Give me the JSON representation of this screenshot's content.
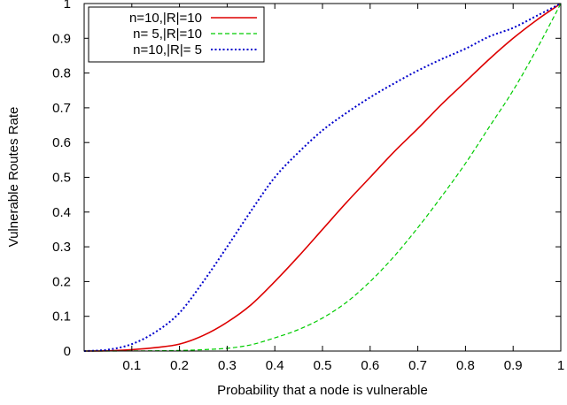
{
  "chart_data": {
    "type": "line",
    "title": "",
    "xlabel": "Probability that a node is vulnerable",
    "ylabel": "Vulnerable Routes Rate",
    "xlim": [
      0,
      1
    ],
    "ylim": [
      0,
      1
    ],
    "xticks": [
      0.1,
      0.2,
      0.3,
      0.4,
      0.5,
      0.6,
      0.7,
      0.8,
      0.9,
      1
    ],
    "yticks": [
      0,
      0.1,
      0.2,
      0.3,
      0.4,
      0.5,
      0.6,
      0.7,
      0.8,
      0.9,
      1
    ],
    "xtick_labels": [
      "0.1",
      "0.2",
      "0.3",
      "0.4",
      "0.5",
      "0.6",
      "0.7",
      "0.8",
      "0.9",
      "1"
    ],
    "ytick_labels": [
      "0",
      "0.1",
      "0.2",
      "0.3",
      "0.4",
      "0.5",
      "0.6",
      "0.7",
      "0.8",
      "0.9",
      "1"
    ],
    "grid": false,
    "legend_position": "top-left",
    "x": [
      0,
      0.05,
      0.1,
      0.15,
      0.2,
      0.25,
      0.3,
      0.35,
      0.4,
      0.45,
      0.5,
      0.55,
      0.6,
      0.65,
      0.7,
      0.75,
      0.8,
      0.85,
      0.9,
      0.95,
      1.0
    ],
    "series": [
      {
        "name": "n=10,|R|=10",
        "color": "#dd0000",
        "style": "solid",
        "values": [
          0,
          0.0007,
          0.004,
          0.01,
          0.02,
          0.045,
          0.083,
          0.133,
          0.2,
          0.273,
          0.35,
          0.427,
          0.5,
          0.573,
          0.64,
          0.71,
          0.775,
          0.84,
          0.9,
          0.953,
          1.0
        ]
      },
      {
        "name": "n= 5,|R|=10",
        "color": "#00cc00",
        "style": "dashed",
        "values": [
          0,
          0,
          0.0003,
          0.0008,
          0.0018,
          0.004,
          0.008,
          0.018,
          0.038,
          0.062,
          0.095,
          0.14,
          0.2,
          0.272,
          0.355,
          0.445,
          0.54,
          0.645,
          0.75,
          0.87,
          1.0
        ]
      },
      {
        "name": "n=10,|R|= 5",
        "color": "#0000cc",
        "style": "dotted",
        "values": [
          0,
          0.004,
          0.02,
          0.055,
          0.11,
          0.2,
          0.3,
          0.403,
          0.5,
          0.572,
          0.635,
          0.685,
          0.73,
          0.77,
          0.807,
          0.84,
          0.87,
          0.905,
          0.93,
          0.965,
          1.0
        ]
      }
    ]
  }
}
